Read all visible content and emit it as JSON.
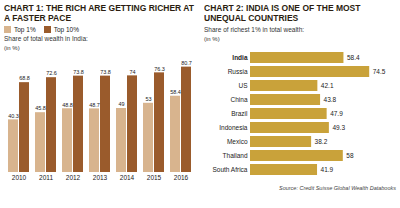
{
  "chart_data": [
    {
      "type": "bar",
      "title": "CHART 1: THE RICH ARE GETTING RICHER AT A FASTER PACE",
      "subtitle": "Share of total wealth in India:",
      "ylabel": "(in %)",
      "categories": [
        "2010",
        "2011",
        "2012",
        "2013",
        "2014",
        "2015",
        "2016"
      ],
      "series": [
        {
          "name": "Top 1%",
          "color": "#d8b48e",
          "values": [
            40.3,
            45.8,
            48.8,
            48.7,
            49,
            53,
            58.4
          ]
        },
        {
          "name": "Top 10%",
          "color": "#9a5b2c",
          "values": [
            68.8,
            72.6,
            73.8,
            73.8,
            74,
            76.3,
            80.7
          ]
        }
      ],
      "ylim": [
        0,
        85
      ],
      "data_labels": true,
      "tick_labels": "x",
      "legend": "top-left"
    },
    {
      "type": "bar",
      "orientation": "horizontal",
      "title": "CHART 2: INDIA IS ONE OF THE MOST UNEQUAL COUNTRIES",
      "subtitle": "Share of richest 1% in total wealth:",
      "xlabel": "(in %)",
      "categories": [
        "India",
        "Russia",
        "US",
        "China",
        "Brazil",
        "Indonesia",
        "Mexico",
        "Thailand",
        "South Africa"
      ],
      "values": [
        58.4,
        74.5,
        42.1,
        43.8,
        47.9,
        49.3,
        38.2,
        58,
        41.9
      ],
      "color": "#c9a23a",
      "xlim": [
        0,
        80
      ],
      "data_labels": true,
      "tick_labels": "y",
      "source": "Source: Credit Suisse Global Wealth Databooks"
    }
  ]
}
